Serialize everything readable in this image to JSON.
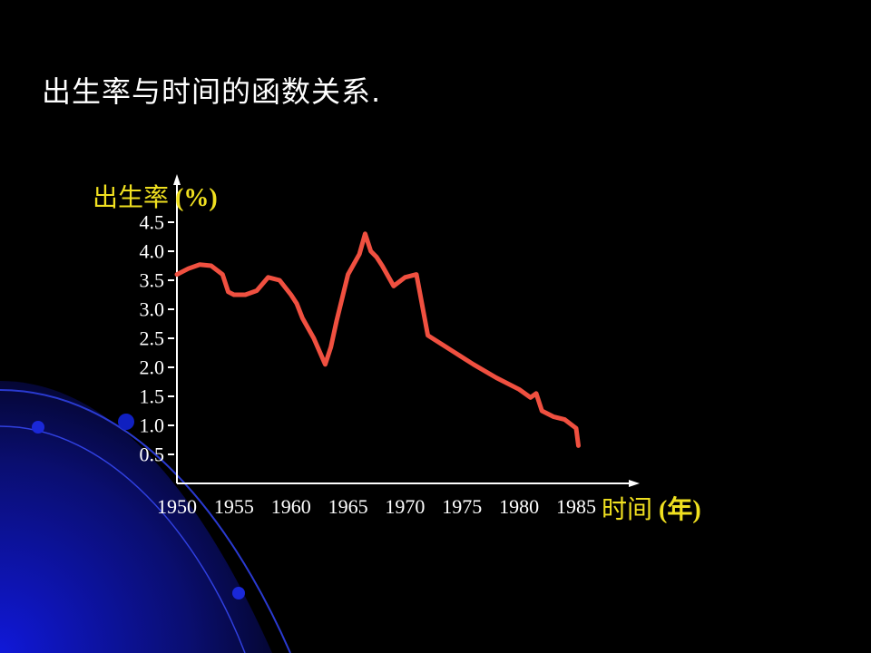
{
  "slide": {
    "title": "出生率与时间的函数关系.",
    "colors": {
      "background": "#000000",
      "title": "#ffffff",
      "axis_label": "#f0e020",
      "tick_text": "#ffffff",
      "series_line": "#f05040",
      "decor_blue": "#1018c0"
    }
  },
  "chart_data": {
    "type": "line",
    "title": "",
    "ylabel": {
      "main": "出生率",
      "unit": "(%)"
    },
    "xlabel": {
      "main": "时间",
      "unit": "(年)"
    },
    "xlim": [
      1950,
      1985
    ],
    "ylim": [
      0,
      4.5
    ],
    "x_ticks": [
      "1950",
      "1955",
      "1960",
      "1965",
      "1970",
      "1975",
      "1980",
      "1985"
    ],
    "y_ticks": [
      "0.5",
      "1.0",
      "1.5",
      "2.0",
      "2.5",
      "3.0",
      "3.5",
      "4.0",
      "4.5"
    ],
    "grid": false,
    "legend": "none",
    "series": [
      {
        "x": [
          1950,
          1951,
          1952,
          1953,
          1954,
          1954.5,
          1955,
          1956,
          1957,
          1958,
          1959,
          1960,
          1960.5,
          1961,
          1962,
          1963,
          1963.5,
          1964,
          1965,
          1966,
          1966.5,
          1967,
          1967.5,
          1968,
          1969,
          1970,
          1971,
          1972,
          1974,
          1976,
          1978,
          1980,
          1981,
          1981.5,
          1982,
          1983,
          1984,
          1985,
          1985.2
        ],
        "y": [
          3.6,
          3.7,
          3.77,
          3.75,
          3.6,
          3.3,
          3.25,
          3.25,
          3.32,
          3.55,
          3.5,
          3.25,
          3.1,
          2.85,
          2.5,
          2.05,
          2.35,
          2.8,
          3.6,
          3.95,
          4.3,
          4.0,
          3.9,
          3.75,
          3.4,
          3.55,
          3.6,
          2.55,
          2.3,
          2.05,
          1.82,
          1.62,
          1.48,
          1.55,
          1.25,
          1.15,
          1.1,
          0.95,
          0.65
        ]
      }
    ]
  }
}
